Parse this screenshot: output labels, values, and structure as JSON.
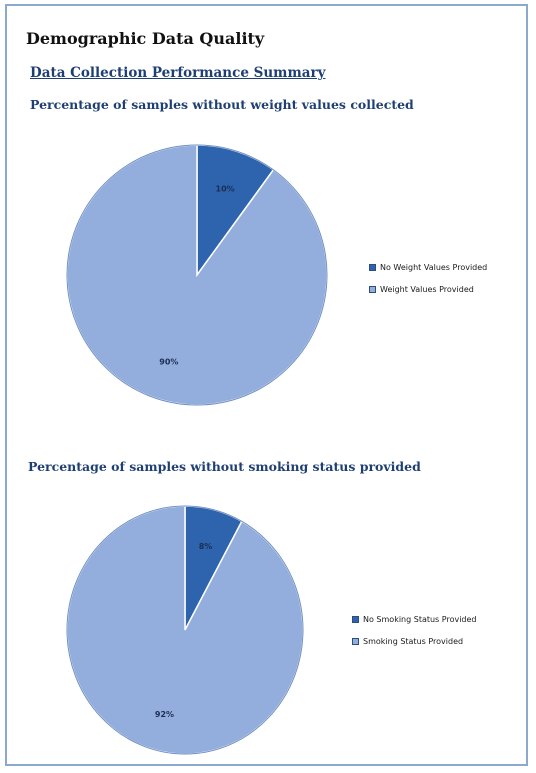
{
  "document": {
    "title": "Demographic Data Quality",
    "section_title": "Data Collection Performance Summary"
  },
  "colors": {
    "dark_slice": "#2e63ad",
    "light_slice": "#93aedc",
    "page_border": "#8aa9cc"
  },
  "chart_data": [
    {
      "type": "pie",
      "title": "Percentage of samples without weight values collected",
      "legend_position": "right",
      "slices": [
        {
          "label": "No Weight Values Provided",
          "value": 10,
          "display": "10%",
          "color": "#2e63ad"
        },
        {
          "label": "Weight Values Provided",
          "value": 90,
          "display": "90%",
          "color": "#93aedc"
        }
      ]
    },
    {
      "type": "pie",
      "title": "Percentage of samples without smoking status provided",
      "legend_position": "right",
      "slices": [
        {
          "label": "No Smoking Status Provided",
          "value": 8,
          "display": "8%",
          "color": "#2e63ad"
        },
        {
          "label": "Smoking Status Provided",
          "value": 92,
          "display": "92%",
          "color": "#93aedc"
        }
      ]
    }
  ]
}
